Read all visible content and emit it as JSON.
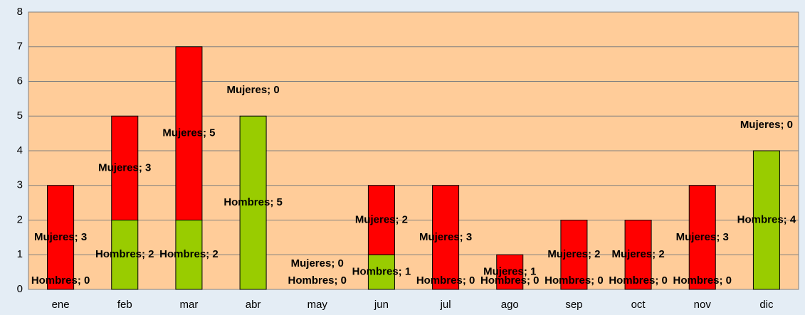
{
  "chart_data": {
    "type": "stacked_bar",
    "categories": [
      "ene",
      "feb",
      "mar",
      "abr",
      "may",
      "jun",
      "jul",
      "ago",
      "sep",
      "oct",
      "nov",
      "dic"
    ],
    "series": [
      {
        "name": "Hombres",
        "color": "#99cc00",
        "values": [
          0,
          2,
          2,
          5,
          0,
          1,
          0,
          0,
          0,
          0,
          0,
          4
        ],
        "value_labels": [
          "Hombres; 0",
          "Hombres; 2",
          "Hombres; 2",
          "Hombres; 5",
          "Hombres; 0",
          "Hombres; 1",
          "Hombres; 0",
          "Hombres; 0",
          "Hombres; 0",
          "Hombres; 0",
          "Hombres; 0",
          "Hombres; 4"
        ]
      },
      {
        "name": "Mujeres",
        "color": "#ff0000",
        "values": [
          3,
          3,
          5,
          0,
          0,
          2,
          3,
          1,
          2,
          2,
          3,
          0
        ],
        "value_labels": [
          "Mujeres; 3",
          "Mujeres; 3",
          "Mujeres; 5",
          "Mujeres; 0",
          "Mujeres; 0",
          "Mujeres; 2",
          "Mujeres; 3",
          "Mujeres; 1",
          "Mujeres; 2",
          "Mujeres; 2",
          "Mujeres; 3",
          "Mujeres; 0"
        ]
      }
    ],
    "ylim": [
      0,
      8
    ],
    "yticks": [
      0,
      1,
      2,
      3,
      4,
      5,
      6,
      7,
      8
    ],
    "grid": true
  }
}
